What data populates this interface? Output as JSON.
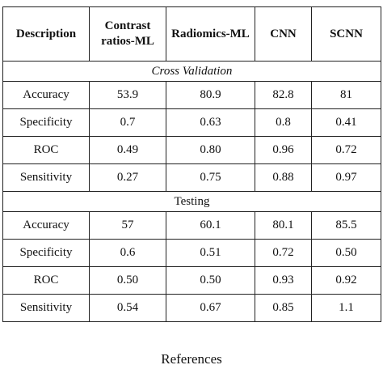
{
  "table": {
    "header": [
      "Description",
      "Contrast ratios-ML",
      "Radiomics-ML",
      "CNN",
      "SCNN"
    ],
    "sections": [
      {
        "title": "Cross Validation",
        "rows": [
          [
            "Accuracy",
            "53.9",
            "80.9",
            "82.8",
            "81"
          ],
          [
            "Specificity",
            "0.7",
            "0.63",
            "0.8",
            "0.41"
          ],
          [
            "ROC",
            "0.49",
            "0.80",
            "0.96",
            "0.72"
          ],
          [
            "Sensitivity",
            "0.27",
            "0.75",
            "0.88",
            "0.97"
          ]
        ]
      },
      {
        "title": "Testing",
        "rows": [
          [
            "Accuracy",
            "57",
            "60.1",
            "80.1",
            "85.5"
          ],
          [
            "Specificity",
            "0.6",
            "0.51",
            "0.72",
            "0.50"
          ],
          [
            "ROC",
            "0.50",
            "0.50",
            "0.93",
            "0.92"
          ],
          [
            "Sensitivity",
            "0.54",
            "0.67",
            "0.85",
            "1.1"
          ]
        ]
      }
    ]
  },
  "footer": {
    "heading": "References"
  }
}
